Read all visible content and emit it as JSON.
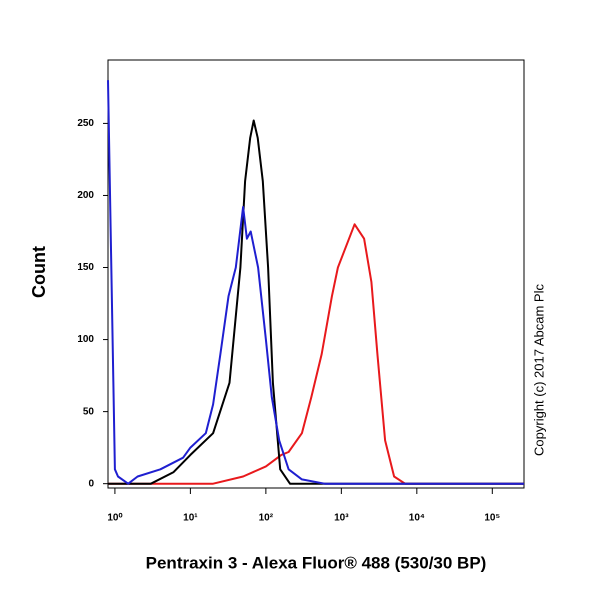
{
  "chart_data": {
    "type": "line",
    "xlabel": "Pentraxin 3 - Alexa Fluor® 488 (530/30 BP)",
    "ylabel": "Count",
    "annotation": "Copyright (c) 2017 Abcam Plc",
    "xscale": "log",
    "xlim": [
      0.81,
      263000
    ],
    "ylim": [
      -3,
      294
    ],
    "xticks": [
      {
        "value": 1,
        "label": "10⁰"
      },
      {
        "value": 10,
        "label": "10¹"
      },
      {
        "value": 100,
        "label": "10²"
      },
      {
        "value": 1000,
        "label": "10³"
      },
      {
        "value": 10000,
        "label": "10⁴"
      },
      {
        "value": 100000,
        "label": "10⁵"
      }
    ],
    "yticks": [
      0,
      50,
      100,
      150,
      200,
      250
    ],
    "series": [
      {
        "color": "#e8191c",
        "x": [
          0.81,
          20,
          50,
          100,
          160,
          200,
          300,
          400,
          550,
          750,
          900,
          1500,
          2000,
          2500,
          3000,
          3800,
          5000,
          7000,
          263000
        ],
        "values": [
          0,
          0,
          5,
          12,
          20,
          22,
          35,
          60,
          90,
          130,
          150,
          180,
          170,
          140,
          90,
          30,
          5,
          0,
          0
        ]
      },
      {
        "color": "#000000",
        "x": [
          0.81,
          3,
          6,
          10,
          20,
          33,
          46,
          53,
          62,
          69,
          78,
          91,
          107,
          124,
          155,
          209,
          263000
        ],
        "values": [
          0,
          0,
          8,
          20,
          35,
          70,
          150,
          210,
          240,
          252,
          240,
          210,
          150,
          70,
          10,
          0,
          0
        ]
      },
      {
        "color": "#1f1fd0",
        "x": [
          0.81,
          1,
          1.1,
          1.5,
          2,
          4,
          8,
          10,
          16,
          20,
          25,
          32,
          40,
          50,
          56,
          63,
          79,
          100,
          120,
          150,
          200,
          300,
          600,
          263000
        ],
        "values": [
          280,
          10,
          5,
          0,
          5,
          10,
          18,
          25,
          35,
          55,
          90,
          130,
          150,
          192,
          170,
          175,
          150,
          100,
          60,
          30,
          10,
          3,
          0,
          0
        ]
      }
    ]
  }
}
